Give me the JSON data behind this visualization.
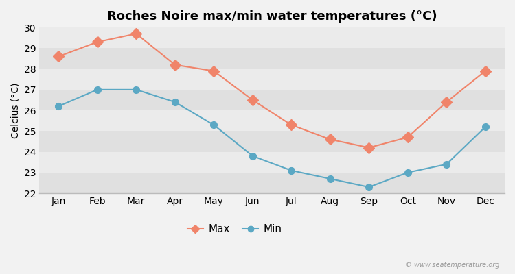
{
  "months": [
    "Jan",
    "Feb",
    "Mar",
    "Apr",
    "May",
    "Jun",
    "Jul",
    "Aug",
    "Sep",
    "Oct",
    "Nov",
    "Dec"
  ],
  "max_temps": [
    28.6,
    29.3,
    29.7,
    28.2,
    27.9,
    26.5,
    25.3,
    24.6,
    24.2,
    24.7,
    26.4,
    27.9
  ],
  "min_temps": [
    26.2,
    27.0,
    27.0,
    26.4,
    25.3,
    23.8,
    23.1,
    22.7,
    22.3,
    23.0,
    23.4,
    25.2
  ],
  "max_color": "#f0846a",
  "min_color": "#5ba8c4",
  "title": "Roches Noire max/min water temperatures (°C)",
  "ylabel": "Celcius (°C)",
  "ylim": [
    22,
    30
  ],
  "yticks": [
    22,
    23,
    24,
    25,
    26,
    27,
    28,
    29,
    30
  ],
  "bg_color": "#f2f2f2",
  "band_light": "#ebebeb",
  "band_dark": "#e0e0e0",
  "legend_max": "Max",
  "legend_min": "Min",
  "watermark": "© www.seatemperature.org",
  "marker_size_max": 8,
  "marker_size_min": 7,
  "line_width": 1.5,
  "title_fontsize": 13,
  "label_fontsize": 10,
  "tick_fontsize": 10
}
